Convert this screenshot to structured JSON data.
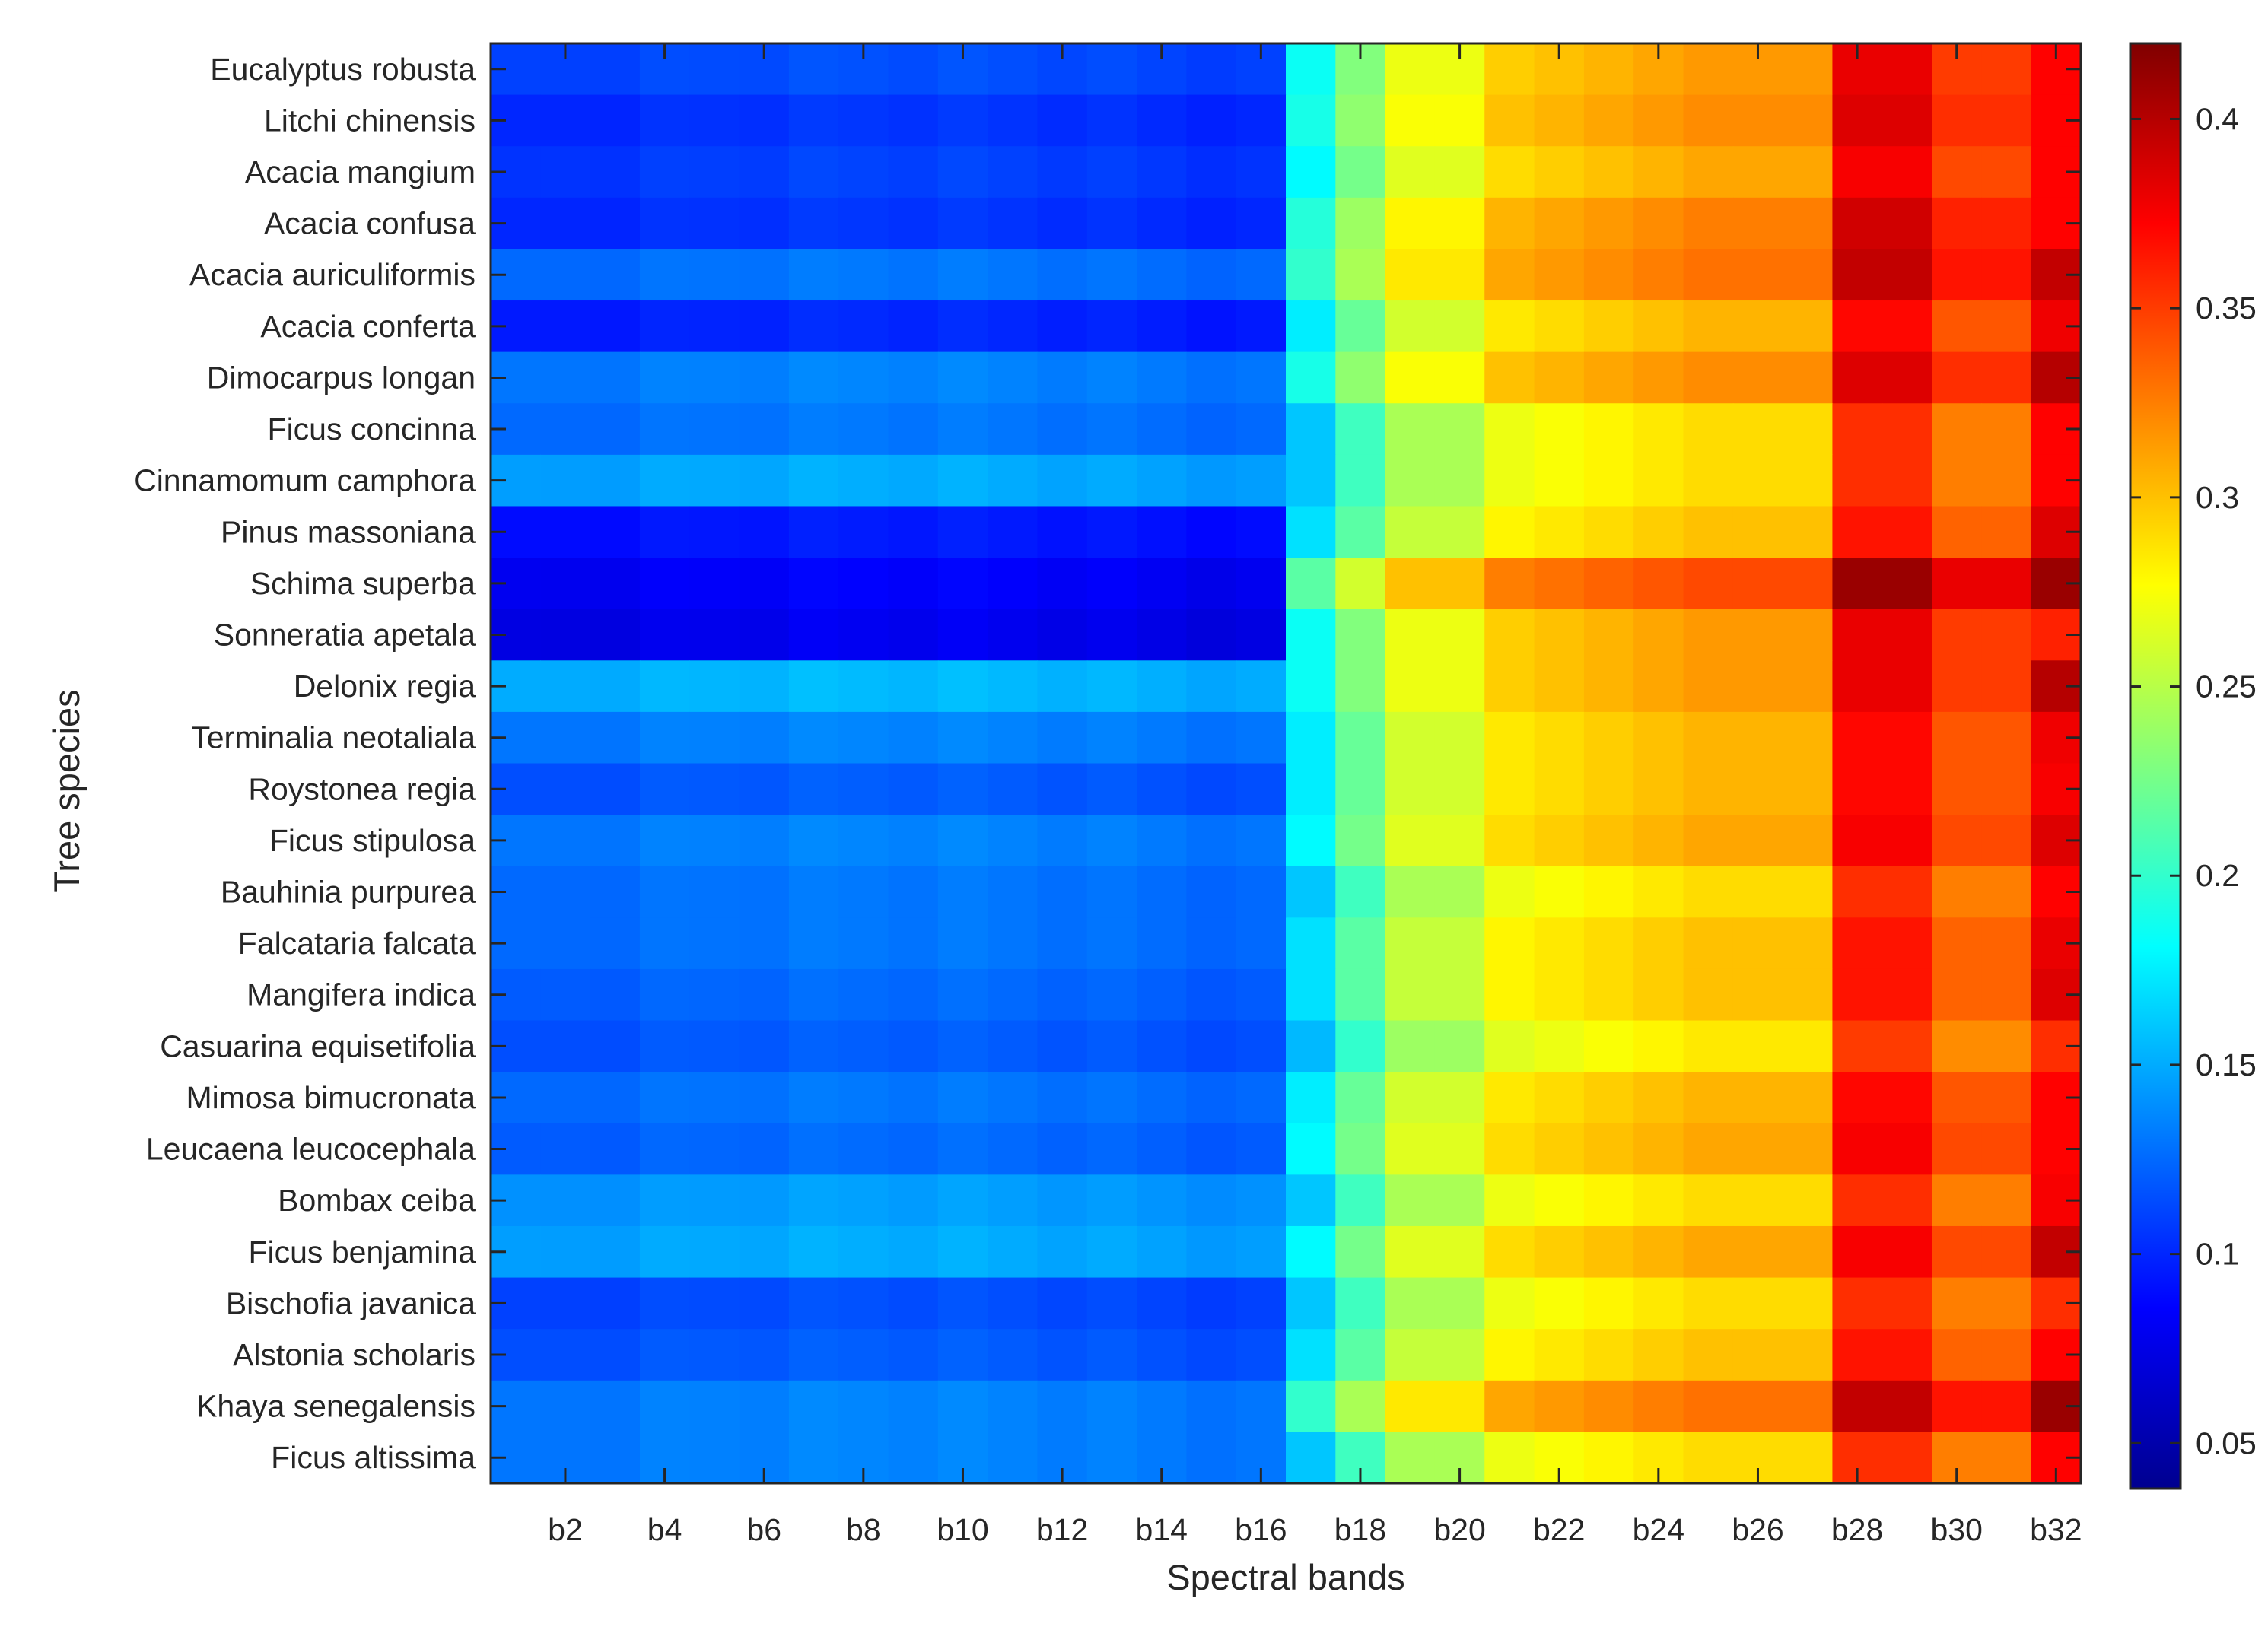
{
  "chart_data": {
    "type": "heatmap",
    "title": "",
    "xlabel": "Spectral bands",
    "ylabel": "Tree species",
    "species": [
      "Eucalyptus robusta",
      "Litchi chinensis",
      "Acacia mangium",
      "Acacia confusa",
      "Acacia auriculiformis",
      "Acacia conferta",
      "Dimocarpus longan",
      "Ficus concinna",
      "Cinnamomum camphora",
      "Pinus massoniana",
      "Schima superba",
      "Sonneratia apetala",
      "Delonix regia",
      "Terminalia neotaliala",
      "Roystonea regia",
      "Ficus stipulosa",
      "Bauhinia purpurea",
      "Falcataria falcata",
      "Mangifera indica",
      "Casuarina equisetifolia",
      "Mimosa bimucronata",
      "Leucaena leucocephala",
      "Bombax ceiba",
      "Ficus benjamina",
      "Bischofia javanica",
      "Alstonia scholaris",
      "Khaya senegalensis",
      "Ficus altissima"
    ],
    "band_tick_labels": [
      "b2",
      "b4",
      "b6",
      "b8",
      "b10",
      "b12",
      "b14",
      "b16",
      "b18",
      "b20",
      "b22",
      "b24",
      "b26",
      "b28",
      "b30",
      "b32"
    ],
    "band_count": 32,
    "colorbar": {
      "colormap": "jet",
      "range": [
        0.038,
        0.42
      ],
      "ticks": [
        0.05,
        0.1,
        0.15,
        0.2,
        0.25,
        0.3,
        0.35,
        0.4
      ],
      "tick_labels": [
        "0.05",
        "0.1",
        "0.15",
        "0.2",
        "0.25",
        "0.3",
        "0.35",
        "0.4"
      ]
    },
    "band_profile": [
      0,
      0,
      0,
      0,
      0,
      0,
      0,
      0,
      0,
      0,
      0,
      0,
      0,
      0,
      0,
      0,
      0.17,
      0.215,
      0.255,
      0.255,
      0.28,
      0.285,
      0.29,
      0.295,
      0.3,
      0.3,
      0.3,
      0.365,
      0.365,
      0.335,
      0.335,
      0.37
    ],
    "series": [
      {
        "name": "Eucalyptus robusta",
        "visible": 0.11,
        "nir_offset": 0.015,
        "b32": 0.372
      },
      {
        "name": "Litchi chinensis",
        "visible": 0.1,
        "nir_offset": 0.02,
        "b32": 0.372
      },
      {
        "name": "Acacia mangium",
        "visible": 0.105,
        "nir_offset": 0.01,
        "b32": 0.372
      },
      {
        "name": "Acacia confusa",
        "visible": 0.1,
        "nir_offset": 0.025,
        "b32": 0.372
      },
      {
        "name": "Acacia auriculiformis",
        "visible": 0.125,
        "nir_offset": 0.03,
        "b32": 0.395
      },
      {
        "name": "Acacia conferta",
        "visible": 0.095,
        "nir_offset": 0.005,
        "b32": 0.378
      },
      {
        "name": "Dimocarpus longan",
        "visible": 0.13,
        "nir_offset": 0.02,
        "b32": 0.4
      },
      {
        "name": "Ficus concinna",
        "visible": 0.125,
        "nir_offset": -0.01,
        "b32": 0.372
      },
      {
        "name": "Cinnamomum camphora",
        "visible": 0.145,
        "nir_offset": -0.01,
        "b32": 0.372
      },
      {
        "name": "Pinus massoniana",
        "visible": 0.09,
        "nir_offset": 0.0,
        "b32": 0.385
      },
      {
        "name": "Schima superba",
        "visible": 0.08,
        "nir_offset": 0.045,
        "b32": 0.41
      },
      {
        "name": "Sonneratia apetala",
        "visible": 0.075,
        "nir_offset": 0.015,
        "b32": 0.36
      },
      {
        "name": "Delonix regia",
        "visible": 0.15,
        "nir_offset": 0.015,
        "b32": 0.4
      },
      {
        "name": "Terminalia neotaliala",
        "visible": 0.13,
        "nir_offset": 0.005,
        "b32": 0.378
      },
      {
        "name": "Roystonea regia",
        "visible": 0.115,
        "nir_offset": 0.005,
        "b32": 0.375
      },
      {
        "name": "Ficus stipulosa",
        "visible": 0.13,
        "nir_offset": 0.01,
        "b32": 0.385
      },
      {
        "name": "Bauhinia purpurea",
        "visible": 0.125,
        "nir_offset": -0.01,
        "b32": 0.372
      },
      {
        "name": "Falcataria falcata",
        "visible": 0.125,
        "nir_offset": 0.0,
        "b32": 0.38
      },
      {
        "name": "Mangifera indica",
        "visible": 0.12,
        "nir_offset": 0.0,
        "b32": 0.385
      },
      {
        "name": "Casuarina equisetifolia",
        "visible": 0.115,
        "nir_offset": -0.015,
        "b32": 0.355
      },
      {
        "name": "Mimosa bimucronata",
        "visible": 0.125,
        "nir_offset": 0.005,
        "b32": 0.372
      },
      {
        "name": "Leucaena leucocephala",
        "visible": 0.12,
        "nir_offset": 0.01,
        "b32": 0.372
      },
      {
        "name": "Bombax ceiba",
        "visible": 0.14,
        "nir_offset": -0.01,
        "b32": 0.375
      },
      {
        "name": "Ficus benjamina",
        "visible": 0.145,
        "nir_offset": 0.01,
        "b32": 0.395
      },
      {
        "name": "Bischofia javanica",
        "visible": 0.11,
        "nir_offset": -0.01,
        "b32": 0.355
      },
      {
        "name": "Alstonia scholaris",
        "visible": 0.115,
        "nir_offset": 0.0,
        "b32": 0.372
      },
      {
        "name": "Khaya senegalensis",
        "visible": 0.13,
        "nir_offset": 0.03,
        "b32": 0.41
      },
      {
        "name": "Ficus altissima",
        "visible": 0.13,
        "nir_offset": -0.01,
        "b32": 0.372
      }
    ]
  }
}
